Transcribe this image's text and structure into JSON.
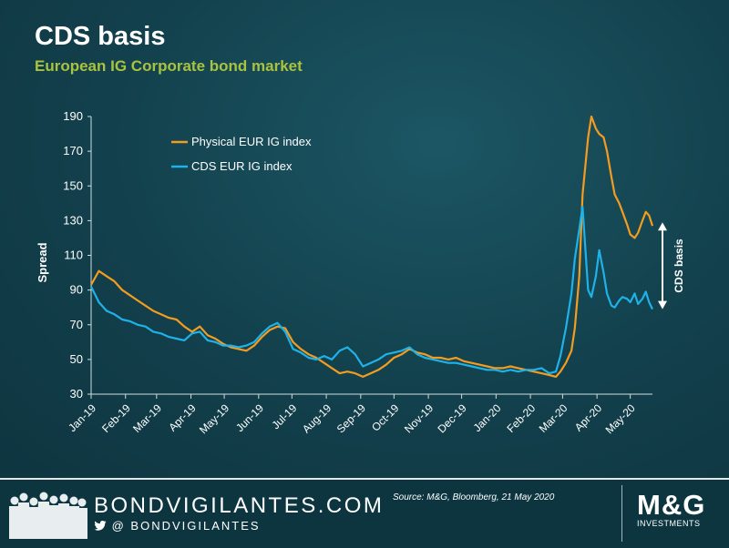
{
  "header": {
    "title": "CDS basis",
    "subtitle": "European IG Corporate bond market"
  },
  "footer": {
    "site_name": "BONDVIGILANTES.COM",
    "twitter_handle": "@ BONDVIGILANTES",
    "source": "Source: M&G, Bloomberg, 21 May 2020",
    "logo_letters": "M&G",
    "logo_sub": "INVESTMENTS"
  },
  "colors": {
    "physical": "#f39c1f",
    "cds": "#1fb2e8",
    "accent": "#a9c23f",
    "background": "#12404c"
  },
  "chart_data": {
    "type": "line",
    "ylabel": "Spread",
    "ylim": [
      30,
      190
    ],
    "yticks": [
      30,
      50,
      70,
      90,
      110,
      130,
      150,
      170,
      190
    ],
    "x_start": "2019-01-01",
    "x_end": "2020-05-21",
    "xticks": [
      "Jan-19",
      "Feb-19",
      "Mar-19",
      "Apr-19",
      "May-19",
      "Jun-19",
      "Jul-19",
      "Aug-19",
      "Sep-19",
      "Oct-19",
      "Nov-19",
      "Dec-19",
      "Jan-20",
      "Feb-20",
      "Mar-20",
      "Apr-20",
      "May-20"
    ],
    "annotation": "CDS basis",
    "legend_position": "top-left",
    "series": [
      {
        "name": "Physical EUR IG index",
        "points": [
          [
            "2019-01-01",
            93
          ],
          [
            "2019-01-08",
            101
          ],
          [
            "2019-01-15",
            98
          ],
          [
            "2019-01-22",
            95
          ],
          [
            "2019-01-29",
            90
          ],
          [
            "2019-02-05",
            87
          ],
          [
            "2019-02-12",
            84
          ],
          [
            "2019-02-19",
            81
          ],
          [
            "2019-02-26",
            78
          ],
          [
            "2019-03-05",
            76
          ],
          [
            "2019-03-12",
            74
          ],
          [
            "2019-03-19",
            73
          ],
          [
            "2019-03-26",
            69
          ],
          [
            "2019-04-02",
            66
          ],
          [
            "2019-04-09",
            69
          ],
          [
            "2019-04-16",
            64
          ],
          [
            "2019-04-23",
            62
          ],
          [
            "2019-04-30",
            59
          ],
          [
            "2019-05-07",
            57
          ],
          [
            "2019-05-14",
            56
          ],
          [
            "2019-05-21",
            55
          ],
          [
            "2019-05-28",
            58
          ],
          [
            "2019-06-04",
            63
          ],
          [
            "2019-06-11",
            67
          ],
          [
            "2019-06-18",
            69
          ],
          [
            "2019-06-25",
            68
          ],
          [
            "2019-07-02",
            60
          ],
          [
            "2019-07-09",
            56
          ],
          [
            "2019-07-16",
            53
          ],
          [
            "2019-07-23",
            51
          ],
          [
            "2019-07-30",
            48
          ],
          [
            "2019-08-06",
            45
          ],
          [
            "2019-08-13",
            42
          ],
          [
            "2019-08-20",
            43
          ],
          [
            "2019-08-27",
            42
          ],
          [
            "2019-09-03",
            40
          ],
          [
            "2019-09-10",
            42
          ],
          [
            "2019-09-17",
            44
          ],
          [
            "2019-09-24",
            47
          ],
          [
            "2019-10-01",
            51
          ],
          [
            "2019-10-08",
            53
          ],
          [
            "2019-10-15",
            56
          ],
          [
            "2019-10-22",
            54
          ],
          [
            "2019-10-29",
            53
          ],
          [
            "2019-11-05",
            51
          ],
          [
            "2019-11-12",
            51
          ],
          [
            "2019-11-19",
            50
          ],
          [
            "2019-11-26",
            51
          ],
          [
            "2019-12-03",
            49
          ],
          [
            "2019-12-10",
            48
          ],
          [
            "2019-12-17",
            47
          ],
          [
            "2019-12-24",
            46
          ],
          [
            "2019-12-31",
            45
          ],
          [
            "2020-01-07",
            45
          ],
          [
            "2020-01-14",
            46
          ],
          [
            "2020-01-21",
            45
          ],
          [
            "2020-01-28",
            44
          ],
          [
            "2020-02-04",
            43
          ],
          [
            "2020-02-11",
            42
          ],
          [
            "2020-02-18",
            41
          ],
          [
            "2020-02-24",
            40
          ],
          [
            "2020-02-28",
            43
          ],
          [
            "2020-03-04",
            48
          ],
          [
            "2020-03-09",
            55
          ],
          [
            "2020-03-12",
            68
          ],
          [
            "2020-03-16",
            98
          ],
          [
            "2020-03-19",
            145
          ],
          [
            "2020-03-24",
            178
          ],
          [
            "2020-03-27",
            190
          ],
          [
            "2020-03-31",
            183
          ],
          [
            "2020-04-03",
            180
          ],
          [
            "2020-04-07",
            178
          ],
          [
            "2020-04-10",
            170
          ],
          [
            "2020-04-14",
            155
          ],
          [
            "2020-04-17",
            145
          ],
          [
            "2020-04-21",
            140
          ],
          [
            "2020-04-24",
            135
          ],
          [
            "2020-04-28",
            128
          ],
          [
            "2020-05-01",
            122
          ],
          [
            "2020-05-05",
            120
          ],
          [
            "2020-05-08",
            123
          ],
          [
            "2020-05-12",
            130
          ],
          [
            "2020-05-15",
            135
          ],
          [
            "2020-05-18",
            133
          ],
          [
            "2020-05-21",
            127
          ]
        ]
      },
      {
        "name": "CDS EUR IG index",
        "points": [
          [
            "2019-01-01",
            92
          ],
          [
            "2019-01-08",
            83
          ],
          [
            "2019-01-15",
            78
          ],
          [
            "2019-01-22",
            76
          ],
          [
            "2019-01-29",
            73
          ],
          [
            "2019-02-05",
            72
          ],
          [
            "2019-02-12",
            70
          ],
          [
            "2019-02-19",
            69
          ],
          [
            "2019-02-26",
            66
          ],
          [
            "2019-03-05",
            65
          ],
          [
            "2019-03-12",
            63
          ],
          [
            "2019-03-19",
            62
          ],
          [
            "2019-03-26",
            61
          ],
          [
            "2019-04-02",
            65
          ],
          [
            "2019-04-09",
            66
          ],
          [
            "2019-04-16",
            61
          ],
          [
            "2019-04-23",
            60
          ],
          [
            "2019-04-30",
            58
          ],
          [
            "2019-05-07",
            58
          ],
          [
            "2019-05-14",
            57
          ],
          [
            "2019-05-21",
            58
          ],
          [
            "2019-05-28",
            60
          ],
          [
            "2019-06-04",
            65
          ],
          [
            "2019-06-11",
            69
          ],
          [
            "2019-06-18",
            71
          ],
          [
            "2019-06-25",
            66
          ],
          [
            "2019-07-02",
            56
          ],
          [
            "2019-07-09",
            54
          ],
          [
            "2019-07-16",
            51
          ],
          [
            "2019-07-23",
            50
          ],
          [
            "2019-07-30",
            52
          ],
          [
            "2019-08-06",
            50
          ],
          [
            "2019-08-13",
            55
          ],
          [
            "2019-08-20",
            57
          ],
          [
            "2019-08-27",
            53
          ],
          [
            "2019-09-03",
            46
          ],
          [
            "2019-09-10",
            48
          ],
          [
            "2019-09-17",
            50
          ],
          [
            "2019-09-24",
            53
          ],
          [
            "2019-10-01",
            54
          ],
          [
            "2019-10-08",
            55
          ],
          [
            "2019-10-15",
            57
          ],
          [
            "2019-10-22",
            53
          ],
          [
            "2019-10-29",
            51
          ],
          [
            "2019-11-05",
            50
          ],
          [
            "2019-11-12",
            49
          ],
          [
            "2019-11-19",
            48
          ],
          [
            "2019-11-26",
            48
          ],
          [
            "2019-12-03",
            47
          ],
          [
            "2019-12-10",
            46
          ],
          [
            "2019-12-17",
            45
          ],
          [
            "2019-12-24",
            44
          ],
          [
            "2019-12-31",
            44
          ],
          [
            "2020-01-07",
            43
          ],
          [
            "2020-01-14",
            44
          ],
          [
            "2020-01-21",
            43
          ],
          [
            "2020-01-28",
            44
          ],
          [
            "2020-02-04",
            44
          ],
          [
            "2020-02-11",
            45
          ],
          [
            "2020-02-18",
            42
          ],
          [
            "2020-02-24",
            43
          ],
          [
            "2020-02-28",
            52
          ],
          [
            "2020-03-04",
            68
          ],
          [
            "2020-03-09",
            88
          ],
          [
            "2020-03-12",
            108
          ],
          [
            "2020-03-16",
            125
          ],
          [
            "2020-03-19",
            138
          ],
          [
            "2020-03-24",
            90
          ],
          [
            "2020-03-27",
            86
          ],
          [
            "2020-03-31",
            98
          ],
          [
            "2020-04-03",
            113
          ],
          [
            "2020-04-07",
            100
          ],
          [
            "2020-04-10",
            88
          ],
          [
            "2020-04-14",
            81
          ],
          [
            "2020-04-17",
            80
          ],
          [
            "2020-04-21",
            84
          ],
          [
            "2020-04-24",
            86
          ],
          [
            "2020-04-28",
            85
          ],
          [
            "2020-05-01",
            83
          ],
          [
            "2020-05-05",
            88
          ],
          [
            "2020-05-08",
            82
          ],
          [
            "2020-05-12",
            85
          ],
          [
            "2020-05-15",
            89
          ],
          [
            "2020-05-18",
            83
          ],
          [
            "2020-05-21",
            79
          ]
        ]
      }
    ]
  }
}
